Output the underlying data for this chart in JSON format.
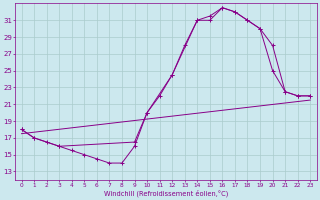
{
  "xlabel": "Windchill (Refroidissement éolien,°C)",
  "xlim": [
    -0.5,
    23.5
  ],
  "ylim": [
    12,
    33
  ],
  "yticks": [
    13,
    15,
    17,
    19,
    21,
    23,
    25,
    27,
    29,
    31
  ],
  "xticks": [
    0,
    1,
    2,
    3,
    4,
    5,
    6,
    7,
    8,
    9,
    10,
    11,
    12,
    13,
    14,
    15,
    16,
    17,
    18,
    19,
    20,
    21,
    22,
    23
  ],
  "bg_color": "#cce8ee",
  "line_color": "#880088",
  "grid_color": "#aacccc",
  "line1": {
    "x": [
      0,
      1,
      2,
      3,
      4,
      5,
      6,
      7,
      8,
      9,
      10,
      11,
      12,
      13,
      14,
      15,
      16,
      17,
      18,
      19,
      20,
      21,
      22,
      23
    ],
    "y": [
      18,
      17,
      16.5,
      16,
      15.5,
      15,
      14.5,
      14,
      14,
      16,
      20,
      22,
      24.5,
      28,
      31,
      31,
      32.5,
      32,
      31,
      30,
      25,
      22.5,
      22,
      22
    ]
  },
  "line2": {
    "x": [
      0,
      1,
      3,
      9,
      10,
      12,
      14,
      15,
      16,
      17,
      18,
      19,
      20,
      21,
      22,
      23
    ],
    "y": [
      18,
      17,
      16,
      16.5,
      20,
      24.5,
      31,
      31.5,
      32.5,
      32,
      31,
      30,
      28,
      22.5,
      22,
      22
    ]
  },
  "line3": {
    "x": [
      0,
      23
    ],
    "y": [
      17.5,
      21.5
    ]
  }
}
